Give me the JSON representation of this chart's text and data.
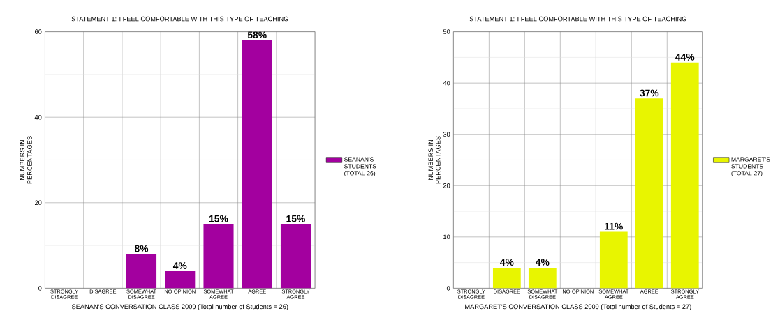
{
  "chart_data": [
    {
      "type": "bar",
      "title": "STATEMENT 1: I FEEL COMFORTABLE WITH THIS TYPE OF TEACHING",
      "xlabel": "SEANAN'S CONVERSATION CLASS 2009 (Total number of Students = 26)",
      "ylabel": "NUMBERS IN PERCENTAGES",
      "categories": [
        "STRONGLY DISAGREE",
        "DISAGREE",
        "SOMEWHAT DISAGREE",
        "NO OPINION",
        "SOMEWHAT AGREE",
        "AGREE",
        "STRONGLY AGREE"
      ],
      "series": [
        {
          "name": "SEANAN'S STUDENTS (TOTAL 26)",
          "color": "#a3009f",
          "values": [
            0,
            0,
            8,
            4,
            15,
            58,
            15
          ],
          "value_labels": [
            null,
            null,
            "8%",
            "4%",
            "15%",
            "58%",
            "15%"
          ]
        }
      ],
      "ylim": [
        0,
        60
      ],
      "yticks": [
        0,
        20,
        40,
        60
      ],
      "grid": true,
      "legend": "right"
    },
    {
      "type": "bar",
      "title": "STATEMENT 1: I FEEL COMFORTABLE WITH THIS TYPE OF TEACHING",
      "xlabel": "MARGARET'S CONVERSATION CLASS 2009 (Total number of Students = 27)",
      "ylabel": "NUMBERS IN PERCENTAGES",
      "categories": [
        "STRONGLY DISAGREE",
        "DISAGREE",
        "SOMEWHAT DISAGREE",
        "NO OPINION",
        "SOMEWHAT AGREE",
        "AGREE",
        "STRONGLY AGREE"
      ],
      "series": [
        {
          "name": "MARGARET'S STUDENTS (TOTAL 27)",
          "color": "#e8f500",
          "values": [
            0,
            4,
            4,
            0,
            11,
            37,
            44
          ],
          "value_labels": [
            null,
            "4%",
            "4%",
            null,
            "11%",
            "37%",
            "44%"
          ]
        }
      ],
      "ylim": [
        0,
        50
      ],
      "yticks": [
        0,
        10,
        20,
        30,
        40,
        50
      ],
      "grid": true,
      "legend": "right"
    }
  ]
}
